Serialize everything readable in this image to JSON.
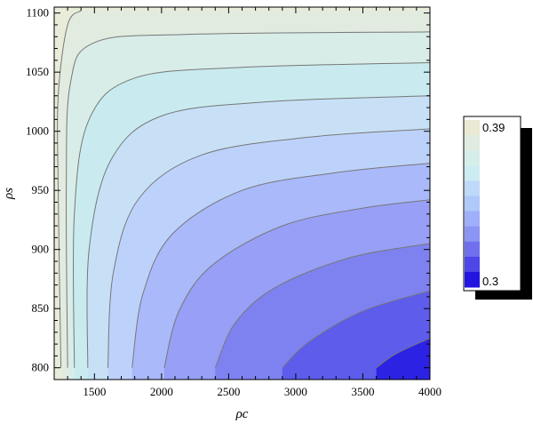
{
  "chart_data": {
    "type": "heatmap",
    "subtype": "contour",
    "xlabel": "ρc",
    "ylabel": "ρs",
    "xlim": [
      1200,
      4000
    ],
    "ylim": [
      790,
      1105
    ],
    "xticks": [
      1500,
      2000,
      2500,
      3000,
      3500,
      4000
    ],
    "yticks": [
      800,
      850,
      900,
      950,
      1000,
      1050,
      1100
    ],
    "grid": false,
    "contours": [
      {
        "level": 1,
        "points": [
          [
            1250,
            800
          ],
          [
            1230,
            950
          ],
          [
            1230,
            1030
          ],
          [
            1300,
            1090
          ],
          [
            1400,
            1102
          ]
        ]
      },
      {
        "level": 2,
        "points": [
          [
            1300,
            800
          ],
          [
            1290,
            950
          ],
          [
            1320,
            1040
          ],
          [
            1500,
            1075
          ],
          [
            2200,
            1082
          ],
          [
            4000,
            1084
          ]
        ]
      },
      {
        "level": 3,
        "points": [
          [
            1350,
            800
          ],
          [
            1350,
            930
          ],
          [
            1460,
            1010
          ],
          [
            1800,
            1045
          ],
          [
            2600,
            1054
          ],
          [
            4000,
            1058
          ]
        ]
      },
      {
        "level": 4,
        "points": [
          [
            1450,
            800
          ],
          [
            1460,
            900
          ],
          [
            1620,
            975
          ],
          [
            2000,
            1013
          ],
          [
            2800,
            1025
          ],
          [
            4000,
            1030
          ]
        ]
      },
      {
        "level": 5,
        "points": [
          [
            1600,
            800
          ],
          [
            1640,
            880
          ],
          [
            1830,
            943
          ],
          [
            2300,
            980
          ],
          [
            3100,
            995
          ],
          [
            4000,
            1002
          ]
        ]
      },
      {
        "level": 6,
        "points": [
          [
            1780,
            800
          ],
          [
            1860,
            862
          ],
          [
            2080,
            913
          ],
          [
            2600,
            950
          ],
          [
            3300,
            965
          ],
          [
            4000,
            973
          ]
        ]
      },
      {
        "level": 7,
        "points": [
          [
            2020,
            800
          ],
          [
            2130,
            848
          ],
          [
            2380,
            887
          ],
          [
            2900,
            920
          ],
          [
            3500,
            935
          ],
          [
            4000,
            942
          ]
        ]
      },
      {
        "level": 8,
        "points": [
          [
            2400,
            800
          ],
          [
            2550,
            838
          ],
          [
            2850,
            868
          ],
          [
            3400,
            893
          ],
          [
            4000,
            905
          ]
        ]
      },
      {
        "level": 9,
        "points": [
          [
            2900,
            800
          ],
          [
            3100,
            822
          ],
          [
            3500,
            848
          ],
          [
            4000,
            865
          ]
        ]
      },
      {
        "level": 10,
        "points": [
          [
            3600,
            800
          ],
          [
            3750,
            812
          ],
          [
            4000,
            825
          ]
        ]
      }
    ],
    "bands": [
      {
        "level": 0,
        "color": "#e9ecd9"
      },
      {
        "level": 1,
        "color": "#e2ebe0"
      },
      {
        "level": 2,
        "color": "#d8ede8"
      },
      {
        "level": 3,
        "color": "#c9ebef"
      },
      {
        "level": 4,
        "color": "#c7e0f6"
      },
      {
        "level": 5,
        "color": "#bdd2fb"
      },
      {
        "level": 6,
        "color": "#a9b9fa"
      },
      {
        "level": 7,
        "color": "#979ff6"
      },
      {
        "level": 8,
        "color": "#7e82f1"
      },
      {
        "level": 9,
        "color": "#5d5ceb"
      },
      {
        "level": 10,
        "color": "#2c22e4"
      }
    ],
    "legend": {
      "placement": "right",
      "max_label": "0.39",
      "min_label": "0.3",
      "swatches": [
        "#e9e9d4",
        "#e0ecdf",
        "#d6eee9",
        "#ccecf1",
        "#bfd9f8",
        "#b0c8fa",
        "#9faffa",
        "#8b95f4",
        "#7070ee",
        "#4d47e8",
        "#2315e0"
      ]
    },
    "contour_color": "#777777"
  }
}
